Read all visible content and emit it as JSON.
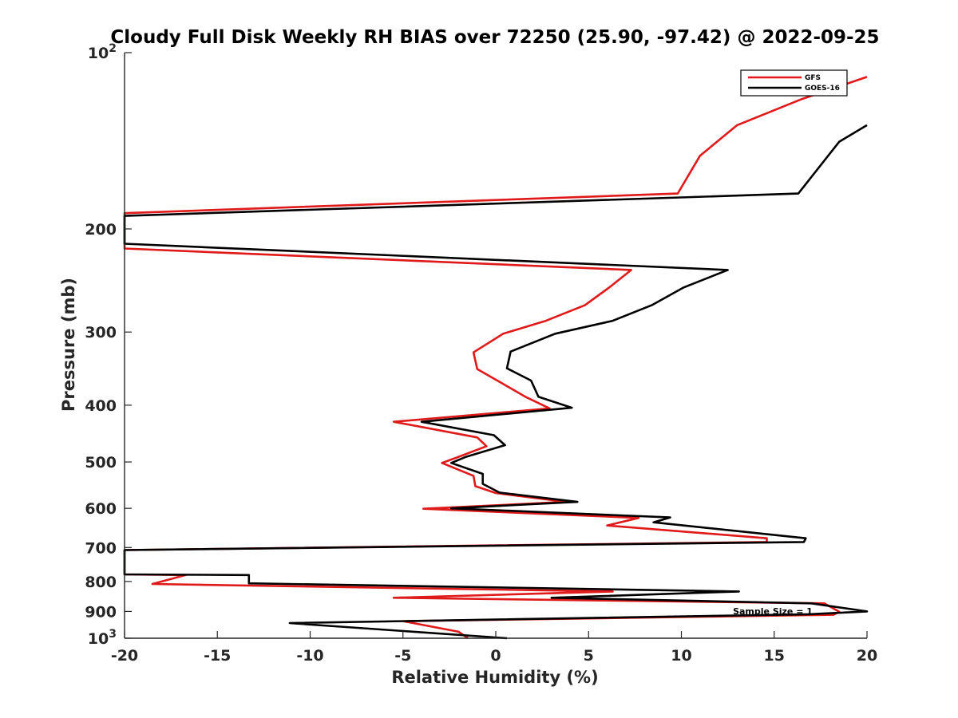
{
  "chart_data": {
    "type": "line",
    "title": "Cloudy Full Disk Weekly RH BIAS over 72250 (25.90, -97.42) @ 2022-09-25",
    "xlabel": "Relative Humidity (%)",
    "ylabel": "Pressure (mb)",
    "xlim": [
      -20,
      20
    ],
    "ylim": [
      100,
      1000
    ],
    "y_scale": "log",
    "y_reversed": true,
    "grid": false,
    "legend_position": "top-right",
    "x_ticks": [
      -20,
      -15,
      -10,
      -5,
      0,
      5,
      10,
      15,
      20
    ],
    "x_tick_labels": [
      "-20",
      "-15",
      "-10",
      "-5",
      "0",
      "5",
      "10",
      "15",
      "20"
    ],
    "y_ticks": [
      100,
      200,
      300,
      400,
      500,
      600,
      700,
      800,
      900,
      1000
    ],
    "y_tick_labels": [
      {
        "base": "10",
        "exp": "2"
      },
      {
        "base": "200",
        "exp": ""
      },
      {
        "base": "300",
        "exp": ""
      },
      {
        "base": "400",
        "exp": ""
      },
      {
        "base": "500",
        "exp": ""
      },
      {
        "base": "600",
        "exp": ""
      },
      {
        "base": "700",
        "exp": ""
      },
      {
        "base": "800",
        "exp": ""
      },
      {
        "base": "900",
        "exp": ""
      },
      {
        "base": "10",
        "exp": "3"
      }
    ],
    "annotation": "Sample Size = 1",
    "series": [
      {
        "name": "GFS",
        "color": "#e0191a",
        "points": [
          {
            "x": 20,
            "y": 110
          },
          {
            "x": 16.5,
            "y": 120
          },
          {
            "x": 13,
            "y": 133
          },
          {
            "x": 11,
            "y": 150
          },
          {
            "x": 9.8,
            "y": 174
          },
          {
            "x": -20,
            "y": 188
          },
          {
            "x": -20,
            "y": 216
          },
          {
            "x": 7.3,
            "y": 235
          },
          {
            "x": 6.1,
            "y": 252
          },
          {
            "x": 4.8,
            "y": 270
          },
          {
            "x": 2.7,
            "y": 287
          },
          {
            "x": 0.4,
            "y": 302
          },
          {
            "x": -1.2,
            "y": 325
          },
          {
            "x": -1.0,
            "y": 347
          },
          {
            "x": 0.4,
            "y": 368
          },
          {
            "x": 1.6,
            "y": 387
          },
          {
            "x": 2.9,
            "y": 405
          },
          {
            "x": -5.5,
            "y": 427
          },
          {
            "x": -1.0,
            "y": 454
          },
          {
            "x": -0.5,
            "y": 470
          },
          {
            "x": -2.0,
            "y": 490
          },
          {
            "x": -2.9,
            "y": 502
          },
          {
            "x": -1.2,
            "y": 528
          },
          {
            "x": -1.1,
            "y": 550
          },
          {
            "x": 0.0,
            "y": 565
          },
          {
            "x": 3.8,
            "y": 585
          },
          {
            "x": -3.9,
            "y": 601
          },
          {
            "x": 7.7,
            "y": 623
          },
          {
            "x": 6.0,
            "y": 642
          },
          {
            "x": 14.6,
            "y": 675
          },
          {
            "x": 14.6,
            "y": 685
          },
          {
            "x": -20,
            "y": 707
          },
          {
            "x": -20,
            "y": 778
          },
          {
            "x": -16.7,
            "y": 780
          },
          {
            "x": -18.5,
            "y": 808
          },
          {
            "x": 6.3,
            "y": 832
          },
          {
            "x": -5.5,
            "y": 853
          },
          {
            "x": 17.7,
            "y": 872
          },
          {
            "x": 18.5,
            "y": 901
          },
          {
            "x": 18.2,
            "y": 912
          },
          {
            "x": -5.0,
            "y": 935
          },
          {
            "x": -2.0,
            "y": 975
          },
          {
            "x": -1.5,
            "y": 1000
          }
        ]
      },
      {
        "name": "GOES-16",
        "color": "#000000",
        "points": [
          {
            "x": 20,
            "y": 133
          },
          {
            "x": 18.5,
            "y": 142
          },
          {
            "x": 16.3,
            "y": 174
          },
          {
            "x": -20,
            "y": 190
          },
          {
            "x": -20,
            "y": 212
          },
          {
            "x": 12.5,
            "y": 235
          },
          {
            "x": 10.1,
            "y": 252
          },
          {
            "x": 8.4,
            "y": 270
          },
          {
            "x": 6.3,
            "y": 287
          },
          {
            "x": 3.2,
            "y": 302
          },
          {
            "x": 0.8,
            "y": 324
          },
          {
            "x": 0.6,
            "y": 346
          },
          {
            "x": 1.9,
            "y": 363
          },
          {
            "x": 2.3,
            "y": 387
          },
          {
            "x": 4.1,
            "y": 404
          },
          {
            "x": -4.0,
            "y": 427
          },
          {
            "x": -0.1,
            "y": 450
          },
          {
            "x": 0.5,
            "y": 468
          },
          {
            "x": -1.6,
            "y": 490
          },
          {
            "x": -2.4,
            "y": 502
          },
          {
            "x": -0.7,
            "y": 524
          },
          {
            "x": -0.7,
            "y": 545
          },
          {
            "x": 0.2,
            "y": 564
          },
          {
            "x": 4.4,
            "y": 585
          },
          {
            "x": -2.4,
            "y": 600
          },
          {
            "x": 9.4,
            "y": 622
          },
          {
            "x": 8.5,
            "y": 634
          },
          {
            "x": 16.7,
            "y": 675
          },
          {
            "x": 16.6,
            "y": 685
          },
          {
            "x": -20,
            "y": 707
          },
          {
            "x": -20,
            "y": 778
          },
          {
            "x": -13.3,
            "y": 780
          },
          {
            "x": -13.3,
            "y": 806
          },
          {
            "x": 13.1,
            "y": 832
          },
          {
            "x": 3.0,
            "y": 853
          },
          {
            "x": 17.0,
            "y": 872
          },
          {
            "x": 20,
            "y": 900
          },
          {
            "x": 16.9,
            "y": 910
          },
          {
            "x": -11.1,
            "y": 942
          },
          {
            "x": -9.3,
            "y": 951
          },
          {
            "x": 0.6,
            "y": 1000
          }
        ]
      }
    ]
  }
}
